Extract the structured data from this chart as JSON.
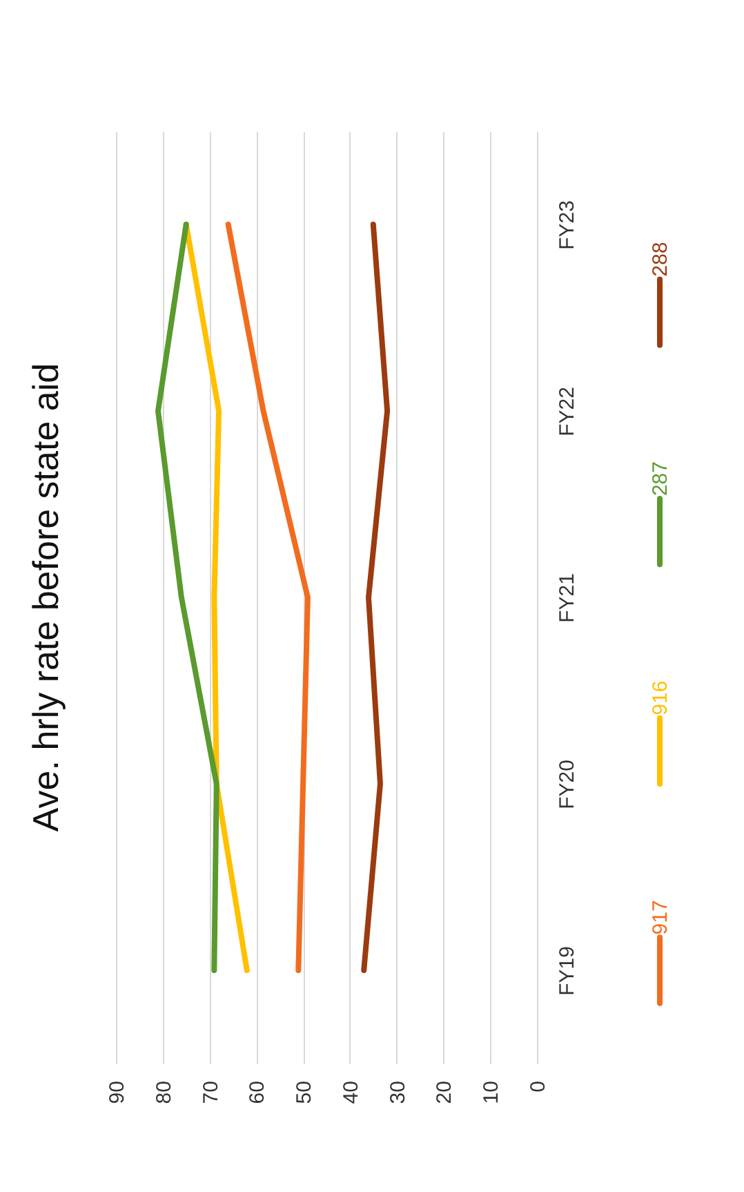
{
  "chart_data": {
    "type": "line",
    "title": "Ave. hrly rate before state aid",
    "orientation": "horizontal",
    "categories": [
      "FY23",
      "FY22",
      "FY21",
      "FY20",
      "FY19"
    ],
    "series": [
      {
        "name": "917",
        "color": "#f26c1f",
        "values": [
          66,
          58.5,
          49,
          50,
          51
        ]
      },
      {
        "name": "916",
        "color": "#ffc000",
        "values": [
          75,
          68,
          69,
          68.5,
          62
        ]
      },
      {
        "name": "287",
        "color": "#5a9a2e",
        "values": [
          75,
          81,
          76,
          68.5,
          69
        ]
      },
      {
        "name": "288",
        "color": "#9c3a10",
        "values": [
          35,
          32,
          36,
          33.5,
          37
        ]
      }
    ],
    "xlim": [
      90,
      0
    ],
    "xticks": [
      90,
      80,
      70,
      60,
      50,
      40,
      30,
      20,
      10,
      0
    ],
    "grid": "x",
    "legend": "right",
    "line_style": "solid",
    "marker": "none"
  }
}
